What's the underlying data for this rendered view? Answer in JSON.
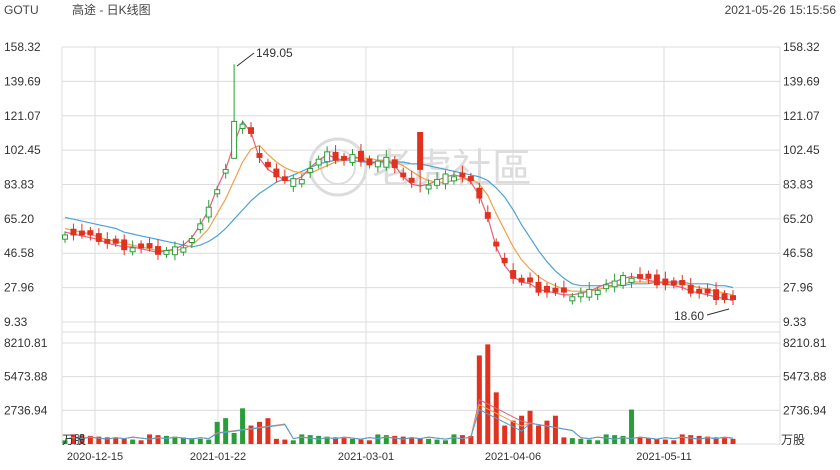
{
  "header": {
    "ticker": "GOTU",
    "name": "高途 - 日K线图",
    "timestamp": "2021-05-26 15:15:56"
  },
  "watermark": {
    "text": "老虎社區"
  },
  "colors": {
    "up": "#2a9d3a",
    "down": "#e0321f",
    "ma5": "#e3617a",
    "ma10": "#f0a04b",
    "ma20": "#4aa3d8",
    "grid": "#dcdcdc"
  },
  "chart_data": [
    {
      "type": "candlestick",
      "price_ticks": [
        "158.32",
        "139.69",
        "121.07",
        "102.45",
        "83.83",
        "65.20",
        "46.58",
        "27.96",
        "9.33"
      ],
      "ylim": [
        9.33,
        158.32
      ],
      "date_ticks": [
        "2020-12-15",
        "2021-01-22",
        "2021-03-01",
        "2021-04-06",
        "2021-05-11"
      ],
      "annotations": {
        "high": "149.05",
        "low": "18.60"
      },
      "ma5": [
        58,
        57,
        56,
        55,
        54,
        52,
        51,
        50,
        50,
        49,
        48,
        47,
        48,
        49,
        51,
        55,
        62,
        70,
        82,
        92,
        106,
        118,
        112,
        98,
        92,
        89,
        86,
        86,
        88,
        93,
        97,
        100,
        98,
        97,
        99,
        98,
        95,
        96,
        97,
        94,
        88,
        84,
        83,
        84,
        86,
        88,
        89,
        88,
        85,
        78,
        66,
        50,
        40,
        34,
        31,
        30,
        27,
        26,
        25,
        24,
        24,
        25,
        26,
        28,
        30,
        31,
        33,
        34,
        33,
        32,
        31,
        30,
        29,
        28,
        26,
        25,
        24,
        23,
        22,
        21
      ],
      "ma10": [
        60,
        59,
        58,
        57,
        55,
        54,
        53,
        52,
        51,
        50,
        49,
        48,
        48,
        48,
        49,
        51,
        55,
        60,
        68,
        76,
        86,
        96,
        103,
        105,
        100,
        96,
        93,
        91,
        90,
        90,
        92,
        94,
        96,
        97,
        98,
        98,
        98,
        97,
        97,
        96,
        94,
        91,
        88,
        86,
        85,
        85,
        86,
        87,
        87,
        84,
        78,
        68,
        59,
        50,
        43,
        38,
        34,
        31,
        29,
        27,
        26,
        26,
        26,
        27,
        28,
        29,
        30,
        31,
        31,
        31,
        31,
        31,
        30,
        30,
        29,
        28,
        27,
        26,
        25,
        24
      ],
      "ma20": [
        66,
        65,
        64,
        63,
        62,
        61,
        60,
        58,
        57,
        56,
        55,
        54,
        53,
        52,
        51,
        50,
        51,
        53,
        56,
        60,
        65,
        70,
        75,
        79,
        82,
        85,
        87,
        89,
        91,
        93,
        95,
        96,
        97,
        97,
        97,
        96,
        96,
        96,
        96,
        96,
        96,
        95,
        95,
        94,
        93,
        92,
        91,
        90,
        89,
        88,
        86,
        82,
        77,
        70,
        62,
        55,
        48,
        42,
        37,
        33,
        30,
        29,
        29,
        29,
        29,
        29,
        29,
        30,
        30,
        30,
        31,
        31,
        31,
        31,
        30,
        30,
        30,
        29,
        29,
        28
      ]
    },
    {
      "type": "bar",
      "volume_ticks": [
        "8210.81",
        "5473.88",
        "2736.94"
      ],
      "unit": "万股",
      "ylim": [
        0,
        8210.81
      ]
    }
  ]
}
